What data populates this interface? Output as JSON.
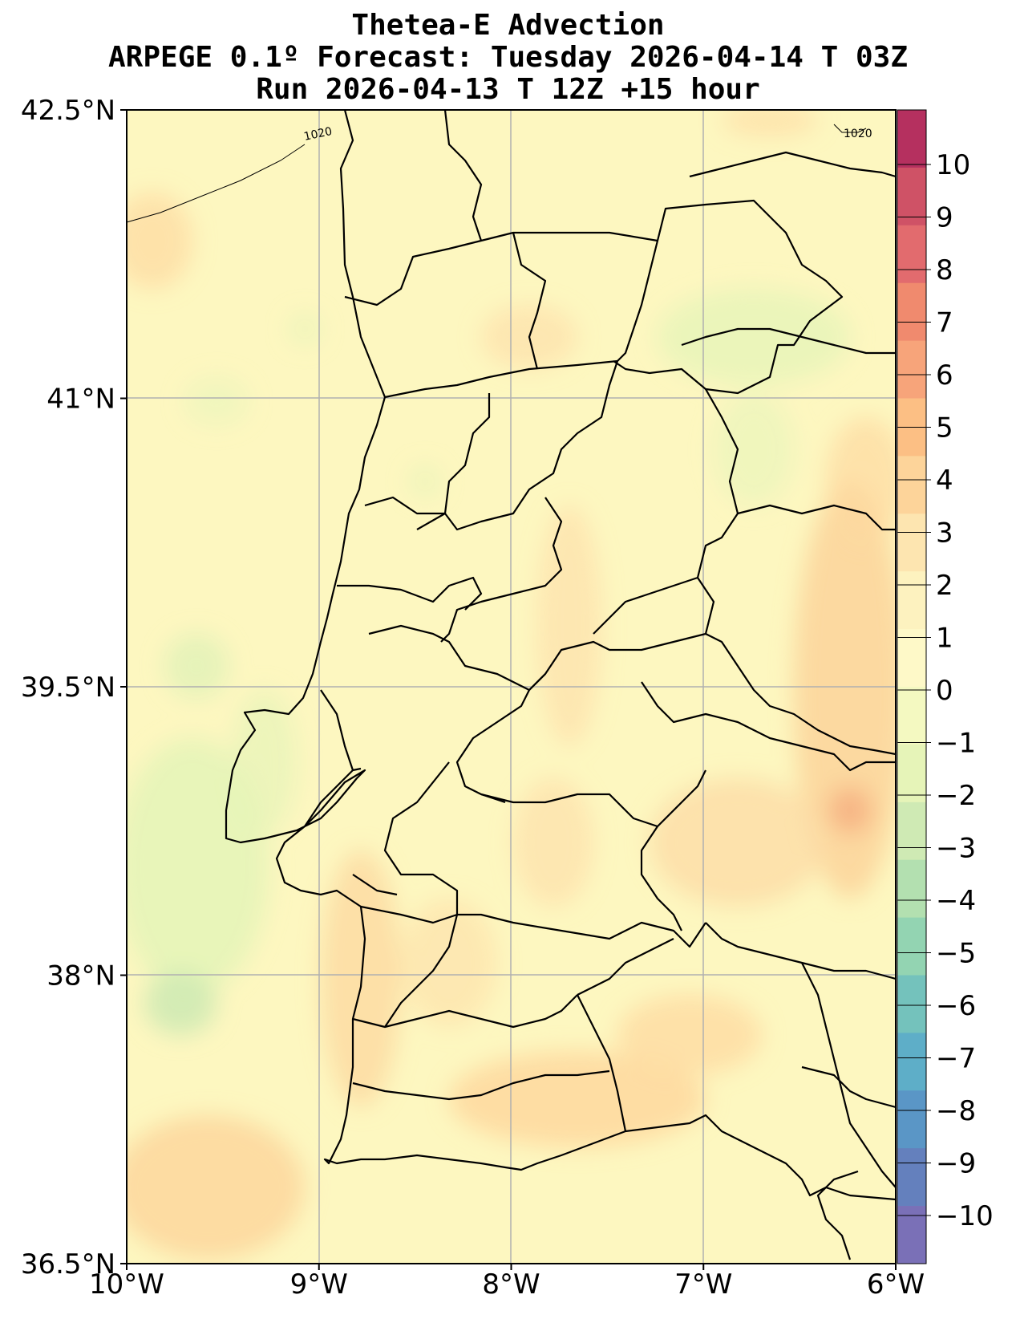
{
  "title": {
    "line1": "Thetea-E Advection",
    "line2": "ARPEGE 0.1º Forecast: Tuesday 2026-04-14 T 03Z",
    "line3": "Run 2026-04-13 T 12Z +15 hour"
  },
  "map": {
    "lon_range": [
      -10,
      -6
    ],
    "lat_range": [
      36.5,
      42.5
    ],
    "background_color": "#fdf7c0",
    "x_ticks": [
      "10°W",
      "9°W",
      "8°W",
      "7°W",
      "6°W"
    ],
    "y_ticks": [
      "42.5°N",
      "41°N",
      "39.5°N",
      "38°N",
      "36.5°N"
    ],
    "isobar_labels": [
      "1020",
      "1020"
    ]
  },
  "colorbar": {
    "ticks": [
      "10",
      "9",
      "8",
      "7",
      "6",
      "5",
      "4",
      "3",
      "2",
      "1",
      "0",
      "−1",
      "−2",
      "−3",
      "−4",
      "−5",
      "−6",
      "−7",
      "−8",
      "−9",
      "−10"
    ],
    "colors": [
      "#b5305f",
      "#cf5266",
      "#e26b6e",
      "#f08a6e",
      "#f7a47a",
      "#fcbf84",
      "#fdd49a",
      "#fde5b0",
      "#fdf2bf",
      "#fef9c8",
      "#f4f9c1",
      "#e6f4b8",
      "#cfeab4",
      "#b3e0b0",
      "#93d4b2",
      "#74c2bc",
      "#5eaec8",
      "#5a96c6",
      "#6480bd",
      "#7a70b7"
    ]
  }
}
